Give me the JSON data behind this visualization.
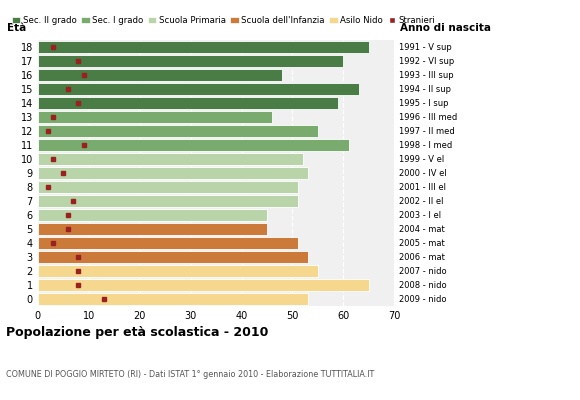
{
  "ages": [
    18,
    17,
    16,
    15,
    14,
    13,
    12,
    11,
    10,
    9,
    8,
    7,
    6,
    5,
    4,
    3,
    2,
    1,
    0
  ],
  "bar_values": [
    65,
    60,
    48,
    63,
    59,
    46,
    55,
    61,
    52,
    53,
    51,
    51,
    45,
    45,
    51,
    53,
    55,
    65,
    53
  ],
  "stranieri_values": [
    3,
    8,
    9,
    6,
    8,
    3,
    2,
    9,
    3,
    5,
    2,
    7,
    6,
    6,
    3,
    8,
    8,
    8,
    13
  ],
  "right_labels": [
    "1991 - V sup",
    "1992 - VI sup",
    "1993 - III sup",
    "1994 - II sup",
    "1995 - I sup",
    "1996 - III med",
    "1997 - II med",
    "1998 - I med",
    "1999 - V el",
    "2000 - IV el",
    "2001 - III el",
    "2002 - II el",
    "2003 - I el",
    "2004 - mat",
    "2005 - mat",
    "2006 - mat",
    "2007 - nido",
    "2008 - nido",
    "2009 - nido"
  ],
  "bar_colors": [
    "#4a7c45",
    "#4a7c45",
    "#4a7c45",
    "#4a7c45",
    "#4a7c45",
    "#7aab6e",
    "#7aab6e",
    "#7aab6e",
    "#b8d4a8",
    "#b8d4a8",
    "#b8d4a8",
    "#b8d4a8",
    "#b8d4a8",
    "#cc7a3a",
    "#cc7a3a",
    "#cc7a3a",
    "#f5d78e",
    "#f5d78e",
    "#f5d78e"
  ],
  "legend_labels": [
    "Sec. II grado",
    "Sec. I grado",
    "Scuola Primaria",
    "Scuola dell'Infanzia",
    "Asilo Nido",
    "Stranieri"
  ],
  "legend_colors": [
    "#4a7c45",
    "#7aab6e",
    "#b8d4a8",
    "#cc7a3a",
    "#f5d78e",
    "#9b2020"
  ],
  "stranieri_color": "#9b2020",
  "title": "Popolazione per età scolastica - 2010",
  "subtitle": "COMUNE DI POGGIO MIRTETO (RI) - Dati ISTAT 1° gennaio 2010 - Elaborazione TUTTITALIA.IT",
  "eta_label": "Età",
  "anno_label": "Anno di nascita",
  "xlim": [
    0,
    70
  ],
  "xticks": [
    0,
    10,
    20,
    30,
    40,
    50,
    60,
    70
  ],
  "grid_color": "#cccccc",
  "bg_color": "#f0f0f0"
}
